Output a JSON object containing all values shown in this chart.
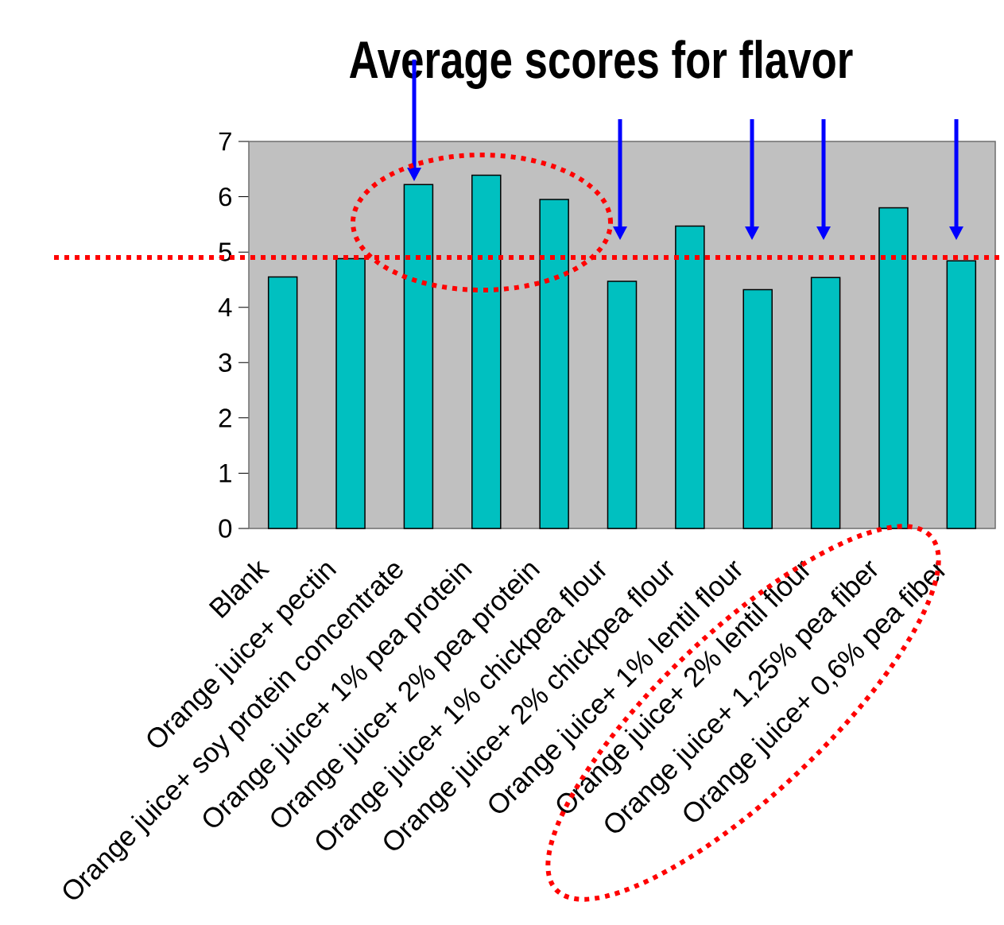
{
  "chart_data": {
    "type": "bar",
    "title": "Average scores for flavor",
    "categories": [
      "Blank",
      "Orange juice+ pectin",
      "Orange juice+ soy protein concentrate",
      "Orange juice+ 1% pea protein",
      "Orange juice+ 2% pea protein",
      "Orange juice+ 1% chickpea flour",
      "Orange juice+ 2% chickpea flour",
      "Orange juice+ 1% lentil flour",
      "Orange juice+ 2% lentil flour",
      "Orange juice+ 1,25% pea fiber",
      "Orange juice+ 0,6% pea fiber"
    ],
    "values": [
      4.55,
      4.88,
      6.22,
      6.39,
      5.95,
      4.47,
      5.47,
      4.32,
      4.54,
      5.8,
      4.84
    ],
    "color": "#00c0c0",
    "ylim": [
      0,
      7
    ],
    "yticks": [
      0,
      1,
      2,
      3,
      4,
      5,
      6,
      7
    ],
    "ref_lines": [
      {
        "axis": "y",
        "value": 4.9,
        "color": "#ff0000",
        "line_style": "dotted"
      }
    ]
  }
}
